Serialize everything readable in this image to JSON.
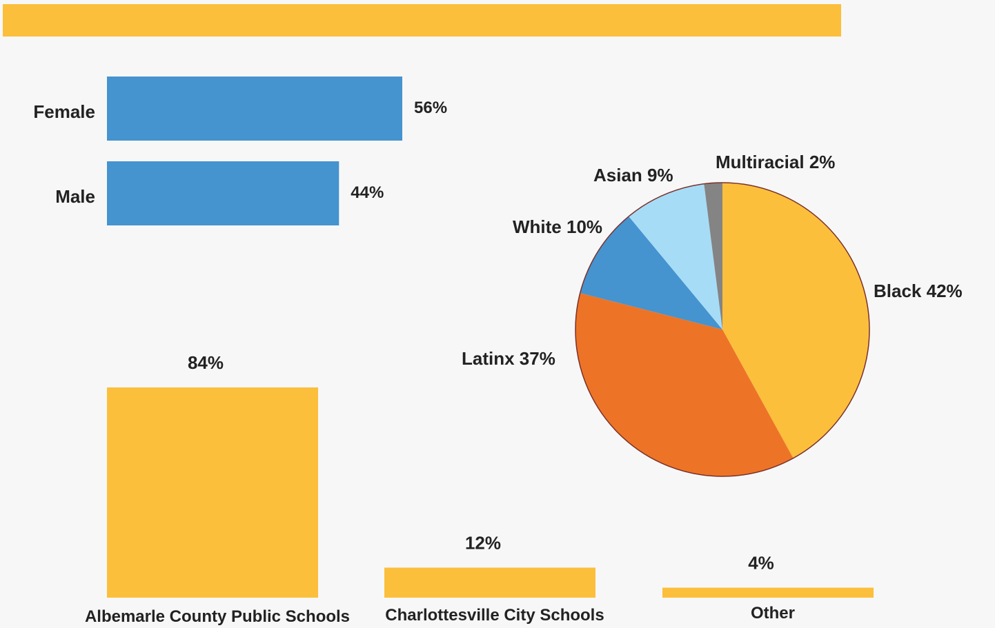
{
  "colors": {
    "background": "#f7f7f7",
    "header_band": "#fbbf3c",
    "gender_bar": "#4593cf",
    "school_bar": "#fbbf3c",
    "pie_outline": "#7a2f2a",
    "text": "#222222"
  },
  "chart_data": [
    {
      "type": "bar",
      "orientation": "horizontal",
      "categories": [
        "Female",
        "Male"
      ],
      "values": [
        56,
        44
      ],
      "value_labels": [
        "56%",
        "44%"
      ],
      "xlim": [
        0,
        100
      ],
      "color": "#4593cf"
    },
    {
      "type": "pie",
      "labels": [
        "Black",
        "Latinx",
        "White",
        "Asian",
        "Multiracial"
      ],
      "values": [
        42,
        37,
        10,
        9,
        2
      ],
      "slice_labels": [
        "Black 42%",
        "Latinx 37%",
        "White 10%",
        "Asian 9%",
        "Multiracial 2%"
      ],
      "colors": [
        "#fbbf3c",
        "#ed7426",
        "#4593cf",
        "#a6dcf6",
        "#848484"
      ],
      "start_angle": "12 o'clock",
      "direction": "clockwise"
    },
    {
      "type": "bar",
      "orientation": "vertical",
      "categories": [
        "Albemarle County Public Schools",
        "Charlottesville City Schools",
        "Other"
      ],
      "values": [
        84,
        12,
        4
      ],
      "value_labels": [
        "84%",
        "12%",
        "4%"
      ],
      "ylim": [
        0,
        100
      ],
      "color": "#fbbf3c"
    }
  ]
}
